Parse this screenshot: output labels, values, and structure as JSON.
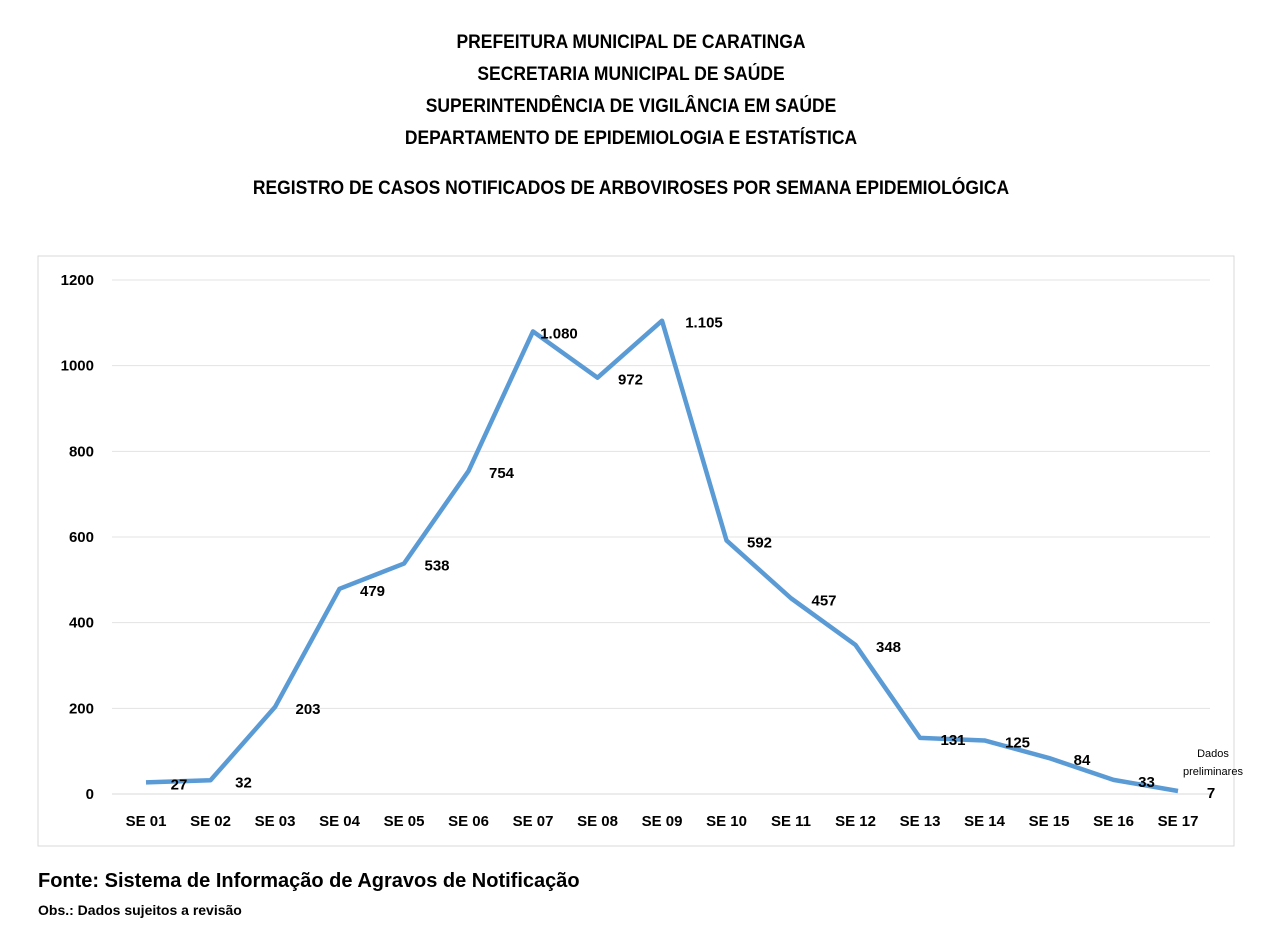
{
  "header": {
    "lines": [
      "PREFEITURA MUNICIPAL DE CARATINGA",
      "SECRETARIA MUNICIPAL DE SAÚDE",
      "SUPERINTENDÊNCIA DE VIGILÂNCIA EM SAÚDE",
      "DEPARTAMENTO DE EPIDEMIOLOGIA E ESTATÍSTICA"
    ]
  },
  "footer": {
    "source": "Fonte: Sistema de Informação de Agravos de Notificação",
    "note": "Obs.: Dados sujeitos a revisão"
  },
  "chart_data": {
    "type": "line",
    "title": "REGISTRO DE CASOS NOTIFICADOS DE ARBOVIROSES POR SEMANA EPIDEMIOLÓGICA",
    "xlabel": "",
    "ylabel": "",
    "ylim": [
      0,
      1200
    ],
    "yticks": [
      "0",
      "200",
      "400",
      "600",
      "800",
      "1000",
      "1200"
    ],
    "grid": true,
    "categories": [
      "SE 01",
      "SE 02",
      "SE 03",
      "SE 04",
      "SE 05",
      "SE 06",
      "SE 07",
      "SE 08",
      "SE 09",
      "SE 10",
      "SE 11",
      "SE 12",
      "SE 13",
      "SE 14",
      "SE 15",
      "SE 16",
      "SE 17"
    ],
    "values": [
      27,
      32,
      203,
      479,
      538,
      754,
      1080,
      972,
      1105,
      592,
      457,
      348,
      131,
      125,
      84,
      33,
      7
    ],
    "data_labels": [
      "27",
      "32",
      "203",
      "479",
      "538",
      "754",
      "1.080",
      "972",
      "1.105",
      "592",
      "457",
      "348",
      "131",
      "125",
      "84",
      "33",
      "7"
    ],
    "annotation": [
      "Dados",
      "preliminares"
    ],
    "line_color": "#5B9BD5"
  }
}
